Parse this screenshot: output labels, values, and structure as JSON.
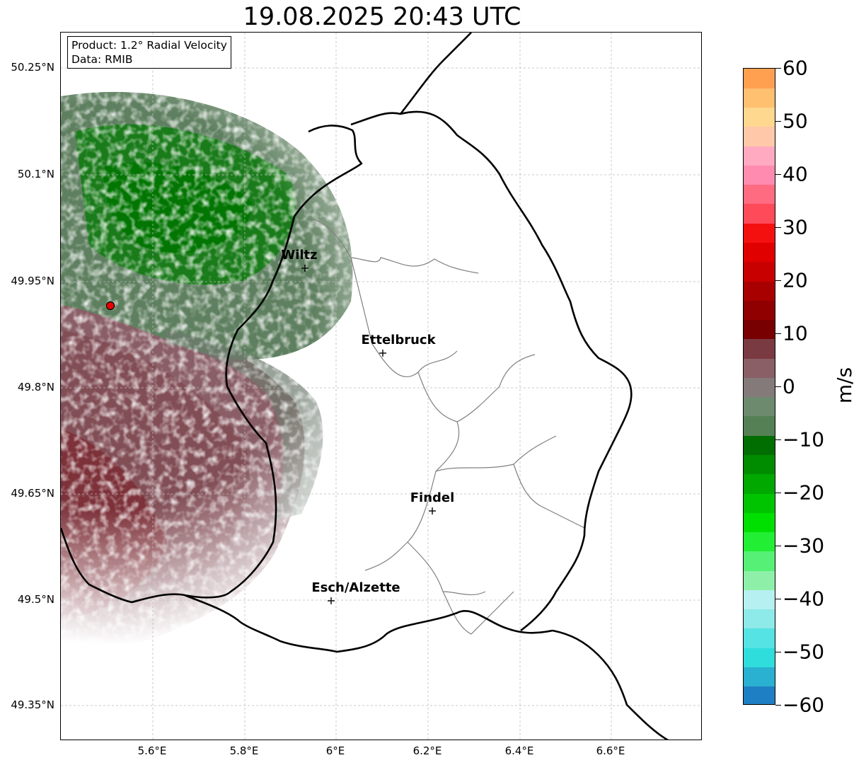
{
  "title": "19.08.2025 20:43 UTC",
  "info_box": {
    "product": "Product: 1.2° Radial Velocity",
    "data": "Data: RMIB"
  },
  "lat_ticks": [
    "50.25°N",
    "50.1°N",
    "49.95°N",
    "49.8°N",
    "49.65°N",
    "49.5°N",
    "49.35°N"
  ],
  "lon_ticks": [
    "5.6°E",
    "5.8°E",
    "6°E",
    "6.2°E",
    "6.4°E",
    "6.6°E"
  ],
  "cities": [
    {
      "name": "Wiltz"
    },
    {
      "name": "Ettelbruck"
    },
    {
      "name": "Findel"
    },
    {
      "name": "Esch/Alzette"
    }
  ],
  "colorbar": {
    "unit": "m/s",
    "min": -60,
    "max": 60,
    "ticks": [
      "60",
      "50",
      "40",
      "30",
      "20",
      "10",
      "0",
      "−10",
      "−20",
      "−30",
      "−40",
      "−50",
      "−60"
    ],
    "colors_bottom_to_top": [
      "#1f7fc4",
      "#2ab0d0",
      "#2fdddd",
      "#55e3e3",
      "#8ee9e9",
      "#b7f0f0",
      "#8ef0a8",
      "#55f075",
      "#22ee33",
      "#00e000",
      "#00c400",
      "#00a800",
      "#008c00",
      "#006e00",
      "#558055",
      "#6e8a6e",
      "#857a7a",
      "#8a5f66",
      "#7a3a42",
      "#780000",
      "#900000",
      "#a80000",
      "#c80000",
      "#e00000",
      "#f51010",
      "#ff4a5a",
      "#ff6b80",
      "#ff8cb0",
      "#ffaac0",
      "#ffc8a8",
      "#ffd890",
      "#ffc070",
      "#ffa050"
    ]
  },
  "radar_site": {
    "lon": 5.505,
    "lat": 49.914
  }
}
